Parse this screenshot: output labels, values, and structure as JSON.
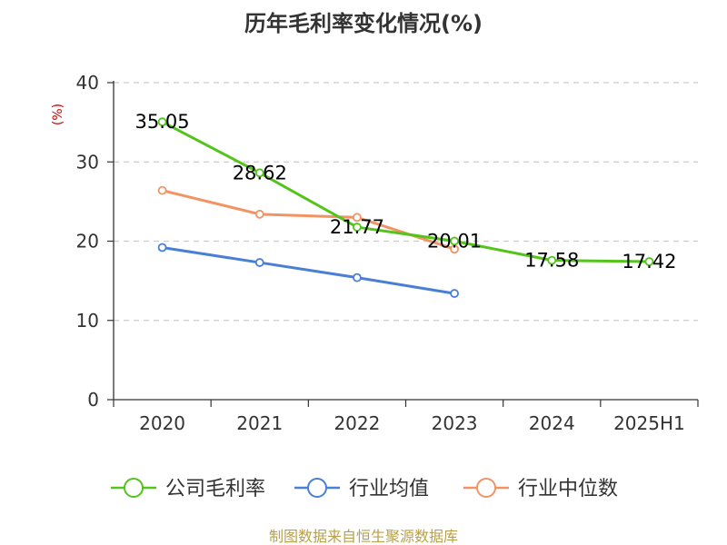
{
  "chart_data": {
    "type": "line",
    "title": "历年毛利率变化情况(%)",
    "ylabel": "(%)",
    "categories": [
      "2020",
      "2021",
      "2022",
      "2023",
      "2024",
      "2025H1"
    ],
    "yticks": [
      "0",
      "10",
      "20",
      "30",
      "40"
    ],
    "ylim": [
      0,
      40
    ],
    "grid": true,
    "legend_position": "bottom",
    "series": [
      {
        "name": "公司毛利率",
        "color": "#52c41a",
        "values": [
          35.05,
          28.62,
          21.77,
          20.01,
          17.58,
          17.42
        ],
        "labels": [
          "35.05",
          "28.62",
          "21.77",
          "20.01",
          "17.58",
          "17.42"
        ]
      },
      {
        "name": "行业均值",
        "color": "#4a7fd6",
        "values": [
          19.2,
          17.3,
          15.4,
          13.4,
          null,
          null
        ]
      },
      {
        "name": "行业中位数",
        "color": "#f29363",
        "values": [
          26.4,
          23.4,
          23.0,
          19.0,
          null,
          null
        ]
      }
    ]
  },
  "source": "制图数据来自恒生聚源数据库"
}
